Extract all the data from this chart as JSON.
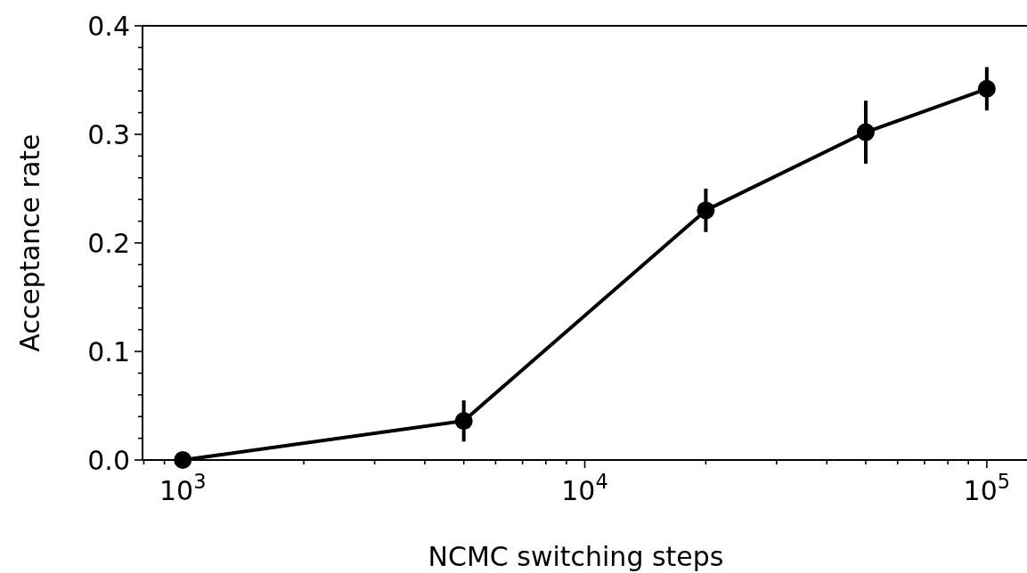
{
  "chart_data": {
    "type": "line",
    "xlabel": "NCMC switching steps",
    "ylabel": "Acceptance rate",
    "log": "x",
    "marker": "circle",
    "line_style": "solid",
    "grid": false,
    "xlim": [
      794,
      125900
    ],
    "ylim": [
      0,
      0.4
    ],
    "xticks": [
      {
        "value": 800,
        "label": null
      },
      {
        "value": 900,
        "label": null
      },
      {
        "value": 1000,
        "label": "10$^{3}$"
      },
      {
        "value": 2000,
        "label": null
      },
      {
        "value": 3000,
        "label": null
      },
      {
        "value": 4000,
        "label": null
      },
      {
        "value": 5000,
        "label": null
      },
      {
        "value": 6000,
        "label": null
      },
      {
        "value": 7000,
        "label": null
      },
      {
        "value": 8000,
        "label": null
      },
      {
        "value": 9000,
        "label": null
      },
      {
        "value": 10000,
        "label": "10$^{4}$"
      },
      {
        "value": 20000,
        "label": null
      },
      {
        "value": 30000,
        "label": null
      },
      {
        "value": 40000,
        "label": null
      },
      {
        "value": 50000,
        "label": null
      },
      {
        "value": 60000,
        "label": null
      },
      {
        "value": 70000,
        "label": null
      },
      {
        "value": 80000,
        "label": null
      },
      {
        "value": 90000,
        "label": null
      },
      {
        "value": 100000,
        "label": "10$^{5}$"
      }
    ],
    "yticks": [
      {
        "value": 0,
        "label": "0.0"
      },
      {
        "value": 0.02,
        "label": null
      },
      {
        "value": 0.04,
        "label": null
      },
      {
        "value": 0.06,
        "label": null
      },
      {
        "value": 0.08,
        "label": null
      },
      0.1,
      {
        "value": 0.12,
        "label": null
      },
      {
        "value": 0.14,
        "label": null
      },
      {
        "value": 0.16,
        "label": null
      },
      {
        "value": 0.18,
        "label": null
      },
      0.2,
      {
        "value": 0.22,
        "label": null
      },
      {
        "value": 0.24,
        "label": null
      },
      {
        "value": 0.26,
        "label": null
      },
      {
        "value": 0.28,
        "label": null
      },
      0.3,
      {
        "value": 0.32,
        "label": null
      },
      {
        "value": 0.34,
        "label": null
      },
      {
        "value": 0.36,
        "label": null
      },
      {
        "value": 0.38,
        "label": null
      },
      0.4
    ],
    "x": [
      1000,
      5000,
      20000,
      50000,
      100000
    ],
    "series": [
      {
        "color": "#000000",
        "values": [
          0,
          0.036,
          0.23,
          0.302,
          0.342
        ],
        "errors": [
          null,
          0.019,
          0.02,
          0.029,
          0.02
        ]
      }
    ]
  }
}
